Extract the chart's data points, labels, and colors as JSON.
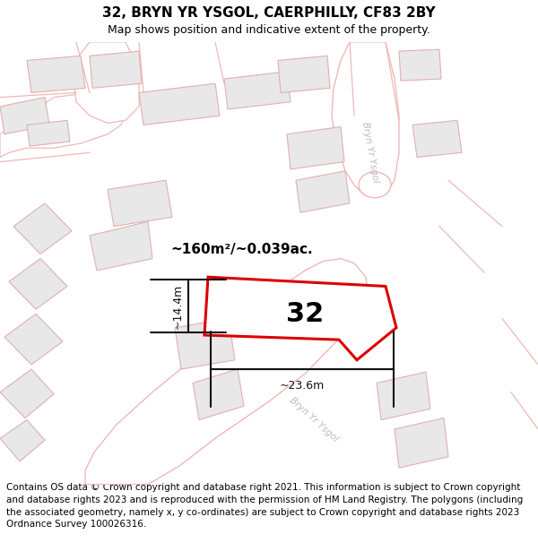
{
  "title": "32, BRYN YR YSGOL, CAERPHILLY, CF83 2BY",
  "subtitle": "Map shows position and indicative extent of the property.",
  "footer": "Contains OS data © Crown copyright and database right 2021. This information is subject to Crown copyright and database rights 2023 and is reproduced with the permission of HM Land Registry. The polygons (including the associated geometry, namely x, y co-ordinates) are subject to Crown copyright and database rights 2023 Ordnance Survey 100026316.",
  "bg_color": "#ffffff",
  "map_bg": "#ffffff",
  "bld_fill": "#e8e8e8",
  "bld_edge": "#e0b0b0",
  "road_fill": "#ffffff",
  "road_edge": "#f0b8b8",
  "highlight_fill": "#ffffff",
  "highlight_edge": "#dd0000",
  "dim_color": "#111111",
  "road_label_color": "#c0b8b8",
  "area_text": "~160m²/~0.039ac.",
  "number_text": "32",
  "dim_width": "~23.6m",
  "dim_height": "~14.4m",
  "road_label1": "Bryn Yr Ysgol",
  "road_label2": "Bryn Yr Ysgol",
  "title_fontsize": 11,
  "subtitle_fontsize": 9,
  "footer_fontsize": 7.5
}
